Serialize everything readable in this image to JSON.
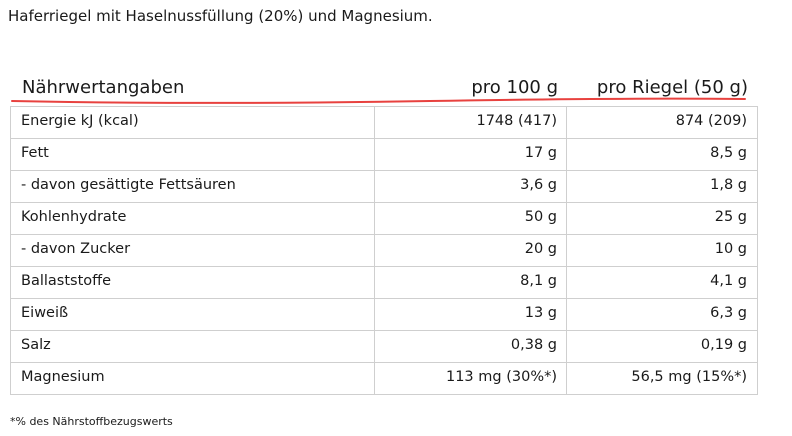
{
  "intro": "Haferriegel mit Haselnussfüllung (20%) und Magnesium.",
  "table": {
    "headers": {
      "label": "Nährwertangaben",
      "per100": "pro 100 g",
      "perBar": "pro Riegel (50 g)"
    },
    "accent_color": "#e8423f",
    "rows": [
      {
        "label": "Energie kJ (kcal)",
        "per100": "1748 (417)",
        "perBar": "874 (209)"
      },
      {
        "label": "Fett",
        "per100": "17 g",
        "perBar": "8,5 g"
      },
      {
        "label": "- davon gesättigte Fettsäuren",
        "per100": "3,6 g",
        "perBar": "1,8 g"
      },
      {
        "label": "Kohlenhydrate",
        "per100": "50 g",
        "perBar": "25 g"
      },
      {
        "label": "- davon Zucker",
        "per100": "20 g",
        "perBar": "10 g"
      },
      {
        "label": "Ballaststoffe",
        "per100": "8,1 g",
        "perBar": "4,1 g"
      },
      {
        "label": "Eiweiß",
        "per100": "13 g",
        "perBar": "6,3 g"
      },
      {
        "label": "Salz",
        "per100": "0,38 g",
        "perBar": "0,19 g"
      },
      {
        "label": "Magnesium",
        "per100": "113 mg (30%*)",
        "perBar": "56,5 mg (15%*)"
      }
    ]
  },
  "footnote": "*% des Nährstoffbezugswerts"
}
